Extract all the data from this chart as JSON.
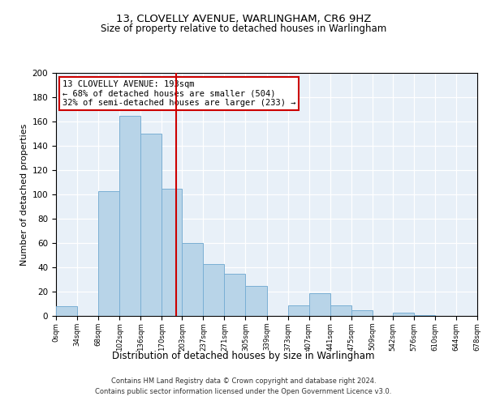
{
  "title": "13, CLOVELLY AVENUE, WARLINGHAM, CR6 9HZ",
  "subtitle": "Size of property relative to detached houses in Warlingham",
  "xlabel": "Distribution of detached houses by size in Warlingham",
  "ylabel": "Number of detached properties",
  "bin_edges": [
    0,
    34,
    68,
    102,
    136,
    170,
    203,
    237,
    271,
    305,
    339,
    373,
    407,
    441,
    475,
    509,
    542,
    576,
    610,
    644,
    678
  ],
  "bin_counts": [
    8,
    0,
    103,
    165,
    150,
    105,
    60,
    43,
    35,
    25,
    0,
    9,
    19,
    9,
    5,
    0,
    3,
    1,
    0,
    0
  ],
  "tick_labels": [
    "0sqm",
    "34sqm",
    "68sqm",
    "102sqm",
    "136sqm",
    "170sqm",
    "203sqm",
    "237sqm",
    "271sqm",
    "305sqm",
    "339sqm",
    "373sqm",
    "407sqm",
    "441sqm",
    "475sqm",
    "509sqm",
    "542sqm",
    "576sqm",
    "610sqm",
    "644sqm",
    "678sqm"
  ],
  "bar_color": "#b8d4e8",
  "bar_edge_color": "#7aafd4",
  "vline_x": 193,
  "vline_color": "#cc0000",
  "annotation_line1": "13 CLOVELLY AVENUE: 193sqm",
  "annotation_line2": "← 68% of detached houses are smaller (504)",
  "annotation_line3": "32% of semi-detached houses are larger (233) →",
  "ylim": [
    0,
    200
  ],
  "yticks": [
    0,
    20,
    40,
    60,
    80,
    100,
    120,
    140,
    160,
    180,
    200
  ],
  "footer1": "Contains HM Land Registry data © Crown copyright and database right 2024.",
  "footer2": "Contains public sector information licensed under the Open Government Licence v3.0.",
  "bg_color": "#e8f0f8"
}
